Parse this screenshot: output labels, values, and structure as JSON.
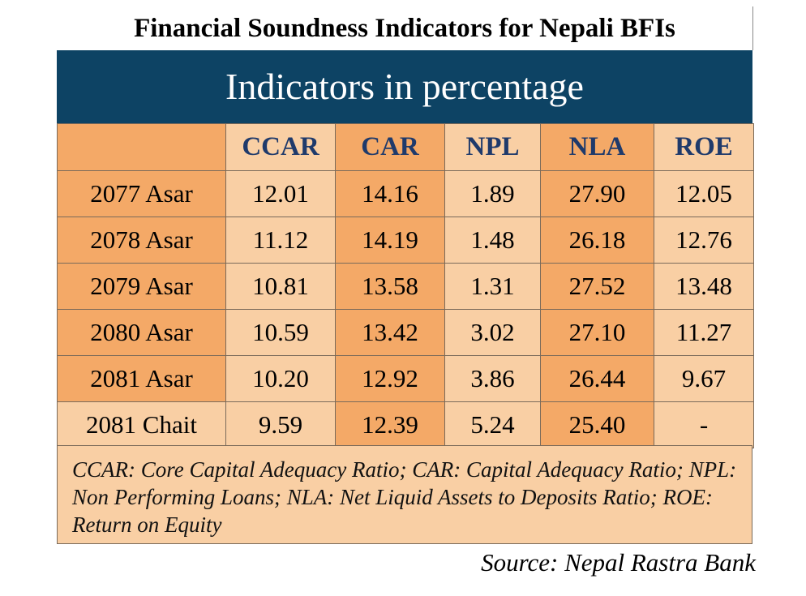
{
  "title": "Financial Soundness Indicators for Nepali BFIs",
  "subtitle": "Indicators in percentage",
  "chart_data": {
    "type": "table",
    "title": "Financial Soundness Indicators for Nepali BFIs",
    "subtitle": "Indicators in percentage",
    "columns": [
      "CCAR",
      "CAR",
      "NPL",
      "NLA",
      "ROE"
    ],
    "rows": [
      {
        "label": "2077 Asar",
        "values": [
          "12.01",
          "14.16",
          "1.89",
          "27.90",
          "12.05"
        ]
      },
      {
        "label": "2078 Asar",
        "values": [
          "11.12",
          "14.19",
          "1.48",
          "26.18",
          "12.76"
        ]
      },
      {
        "label": "2079 Asar",
        "values": [
          "10.81",
          "13.58",
          "1.31",
          "27.52",
          "13.48"
        ]
      },
      {
        "label": "2080 Asar",
        "values": [
          "10.59",
          "13.42",
          "3.02",
          "27.10",
          "11.27"
        ]
      },
      {
        "label": "2081 Asar",
        "values": [
          "10.20",
          "12.92",
          "3.86",
          "26.44",
          "9.67"
        ]
      },
      {
        "label": "2081 Chait",
        "values": [
          "9.59",
          "12.39",
          "5.24",
          "25.40",
          "-"
        ]
      }
    ]
  },
  "footnote": "CCAR: Core Capital Adequacy Ratio; CAR: Capital Adequacy Ratio; NPL: Non Performing Loans; NLA: Net Liquid Assets to Deposits Ratio; ROE: Return on Equity",
  "source": "Source: Nepal Rastra Bank",
  "colors": {
    "banner": "#0d4364",
    "header_text": "#1f3a6b",
    "orange": "#f4a967",
    "peach": "#f9cfa4"
  }
}
